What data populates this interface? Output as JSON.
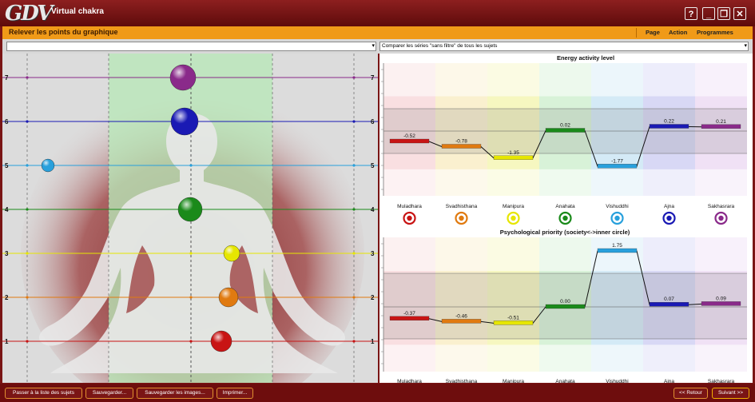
{
  "app": {
    "logo": "GDV",
    "title": "Virtual chakra"
  },
  "window_buttons": {
    "help": "?",
    "minimize": "_",
    "restore": "❐",
    "close": "✕"
  },
  "header": {
    "title": "Relever les points du graphique",
    "menu": [
      "Page",
      "Action",
      "Programmes"
    ]
  },
  "toolbar": {
    "left_combo": "",
    "right_combo": "Comparer les séries \"sans filtre\" de tous les sujets"
  },
  "levels": [
    "1",
    "2",
    "3",
    "4",
    "5",
    "6",
    "7"
  ],
  "chakra_names": [
    "Muladhara",
    "Svadhisthana",
    "Manipura",
    "Anahata",
    "Vishuddhi",
    "Ajna",
    "Sakhasrara"
  ],
  "colors": {
    "chakras": [
      "#c81414",
      "#e07a10",
      "#e6e600",
      "#1a8a1a",
      "#28a0dc",
      "#1a1ab4",
      "#8a2a8a"
    ]
  },
  "charts": {
    "energy": {
      "title": "Energy activity level"
    },
    "priority": {
      "title": "Psychological priority (society<->inner circle)"
    }
  },
  "chart_data": [
    {
      "type": "line",
      "title": "Energy activity level",
      "categories": [
        "Muladhara",
        "Svadhisthana",
        "Manipura",
        "Anahata",
        "Vishuddhi",
        "Ajna",
        "Sakhasrara"
      ],
      "values": [
        -0.52,
        -0.78,
        -1.35,
        0.02,
        -1.77,
        0.22,
        0.21
      ],
      "value_labels": [
        "-0.52",
        "-0.78",
        "-1.35",
        "0.02",
        "-1.77",
        "0.22",
        "0.21"
      ],
      "ylim": [
        -3,
        3
      ]
    },
    {
      "type": "line",
      "title": "Psychological priority (society<->inner circle)",
      "categories": [
        "Muladhara",
        "Svadhisthana",
        "Manipura",
        "Anahata",
        "Vishuddhi",
        "Ajna",
        "Sakhasrara"
      ],
      "values": [
        -0.37,
        -0.46,
        -0.51,
        0.0,
        1.75,
        0.07,
        0.09
      ],
      "value_labels": [
        "-0.37",
        "-0.46",
        "-0.51",
        "0.00",
        "1.75",
        "0.07",
        "0.09"
      ],
      "ylim": [
        -2,
        2
      ]
    }
  ],
  "bottom": {
    "buttons": [
      "Passer à la liste des sujets",
      "Sauvegarder...",
      "Sauvegarder les images...",
      "Imprimer..."
    ],
    "back": "<< Retour",
    "next": "Suivant >>"
  }
}
